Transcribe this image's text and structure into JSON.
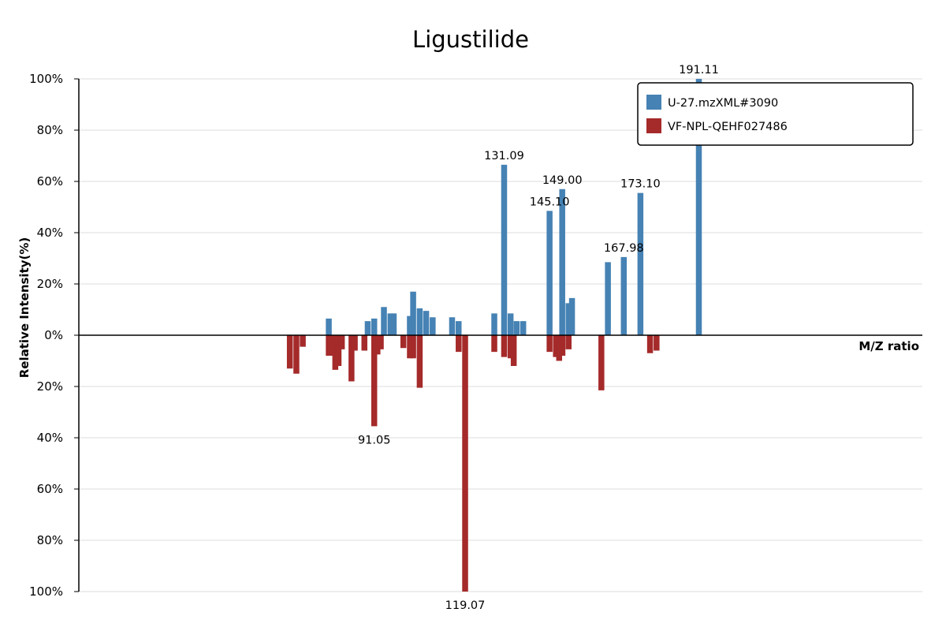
{
  "chart_data": {
    "type": "bar",
    "title": "Ligustilide",
    "xlabel": "M/Z ratio",
    "ylabel": "Relative Intensity(%)",
    "y_tick_labels": [
      "100%",
      "80%",
      "60%",
      "40%",
      "20%",
      "0%",
      "20%",
      "40%",
      "60%",
      "80%",
      "100%"
    ],
    "ylim": [
      -100,
      100
    ],
    "xlim": [
      0,
      260
    ],
    "grid": true,
    "legend_position": "top-right",
    "series": [
      {
        "name": "U-27.mzXML#3090",
        "color": "#4682b4",
        "direction": "up",
        "points": [
          {
            "mz": 77.04,
            "y": 6.5
          },
          {
            "mz": 89.04,
            "y": 5.5
          },
          {
            "mz": 91.05,
            "y": 6.5
          },
          {
            "mz": 94.04,
            "y": 11
          },
          {
            "mz": 96.07,
            "y": 8.5
          },
          {
            "mz": 97.06,
            "y": 8.5
          },
          {
            "mz": 102.04,
            "y": 7.5
          },
          {
            "mz": 103.05,
            "y": 17
          },
          {
            "mz": 105.07,
            "y": 10.5
          },
          {
            "mz": 107.05,
            "y": 9.5
          },
          {
            "mz": 109.06,
            "y": 7
          },
          {
            "mz": 115.05,
            "y": 7
          },
          {
            "mz": 117.06,
            "y": 5.5
          },
          {
            "mz": 128.06,
            "y": 8.5
          },
          {
            "mz": 131.09,
            "y": 66.5
          },
          {
            "mz": 133.08,
            "y": 8.5
          },
          {
            "mz": 134.96,
            "y": 5.5
          },
          {
            "mz": 136.97,
            "y": 5.5
          },
          {
            "mz": 145.1,
            "y": 48.5
          },
          {
            "mz": 149.0,
            "y": 57
          },
          {
            "mz": 150.96,
            "y": 12.5
          },
          {
            "mz": 152.01,
            "y": 14.5
          },
          {
            "mz": 163.08,
            "y": 28.5
          },
          {
            "mz": 167.98,
            "y": 30.5
          },
          {
            "mz": 173.1,
            "y": 55.5
          },
          {
            "mz": 191.11,
            "y": 100
          }
        ],
        "labels": [
          {
            "mz": 131.09,
            "y": 66.5,
            "text": "131.09"
          },
          {
            "mz": 145.1,
            "y": 48.5,
            "text": "145.10"
          },
          {
            "mz": 149.0,
            "y": 57,
            "text": "149.00"
          },
          {
            "mz": 167.98,
            "y": 30.5,
            "text": "167.98"
          },
          {
            "mz": 173.1,
            "y": 55.5,
            "text": "173.10"
          },
          {
            "mz": 191.11,
            "y": 100,
            "text": "191.11"
          }
        ]
      },
      {
        "name": "VF-NPL-QEHF027486",
        "color": "#a52a2a",
        "direction": "down",
        "points": [
          {
            "mz": 65.04,
            "y": 13
          },
          {
            "mz": 67.05,
            "y": 15
          },
          {
            "mz": 69.03,
            "y": 4.5
          },
          {
            "mz": 77.04,
            "y": 8
          },
          {
            "mz": 78.05,
            "y": 8
          },
          {
            "mz": 79.05,
            "y": 13.5
          },
          {
            "mz": 80.05,
            "y": 12
          },
          {
            "mz": 81.07,
            "y": 5.5
          },
          {
            "mz": 84.04,
            "y": 18
          },
          {
            "mz": 85.06,
            "y": 6
          },
          {
            "mz": 88.02,
            "y": 6
          },
          {
            "mz": 91.05,
            "y": 35.5
          },
          {
            "mz": 92.05,
            "y": 7.5
          },
          {
            "mz": 93.07,
            "y": 5.5
          },
          {
            "mz": 100.03,
            "y": 5
          },
          {
            "mz": 102.05,
            "y": 9
          },
          {
            "mz": 103.05,
            "y": 9
          },
          {
            "mz": 105.07,
            "y": 20.5
          },
          {
            "mz": 117.07,
            "y": 6.5
          },
          {
            "mz": 119.07,
            "y": 100
          },
          {
            "mz": 128.06,
            "y": 6.5
          },
          {
            "mz": 131.09,
            "y": 8.5
          },
          {
            "mz": 133.08,
            "y": 9
          },
          {
            "mz": 134.05,
            "y": 12
          },
          {
            "mz": 145.1,
            "y": 6.5
          },
          {
            "mz": 147.06,
            "y": 8.5
          },
          {
            "mz": 148.05,
            "y": 10
          },
          {
            "mz": 149.06,
            "y": 8
          },
          {
            "mz": 150.96,
            "y": 5.5
          },
          {
            "mz": 161.06,
            "y": 21.5
          },
          {
            "mz": 176.07,
            "y": 7
          },
          {
            "mz": 178.07,
            "y": 6
          }
        ],
        "labels": [
          {
            "mz": 91.05,
            "y": 35.5,
            "text": "91.05"
          },
          {
            "mz": 119.07,
            "y": 100,
            "text": "119.07"
          }
        ]
      }
    ]
  }
}
